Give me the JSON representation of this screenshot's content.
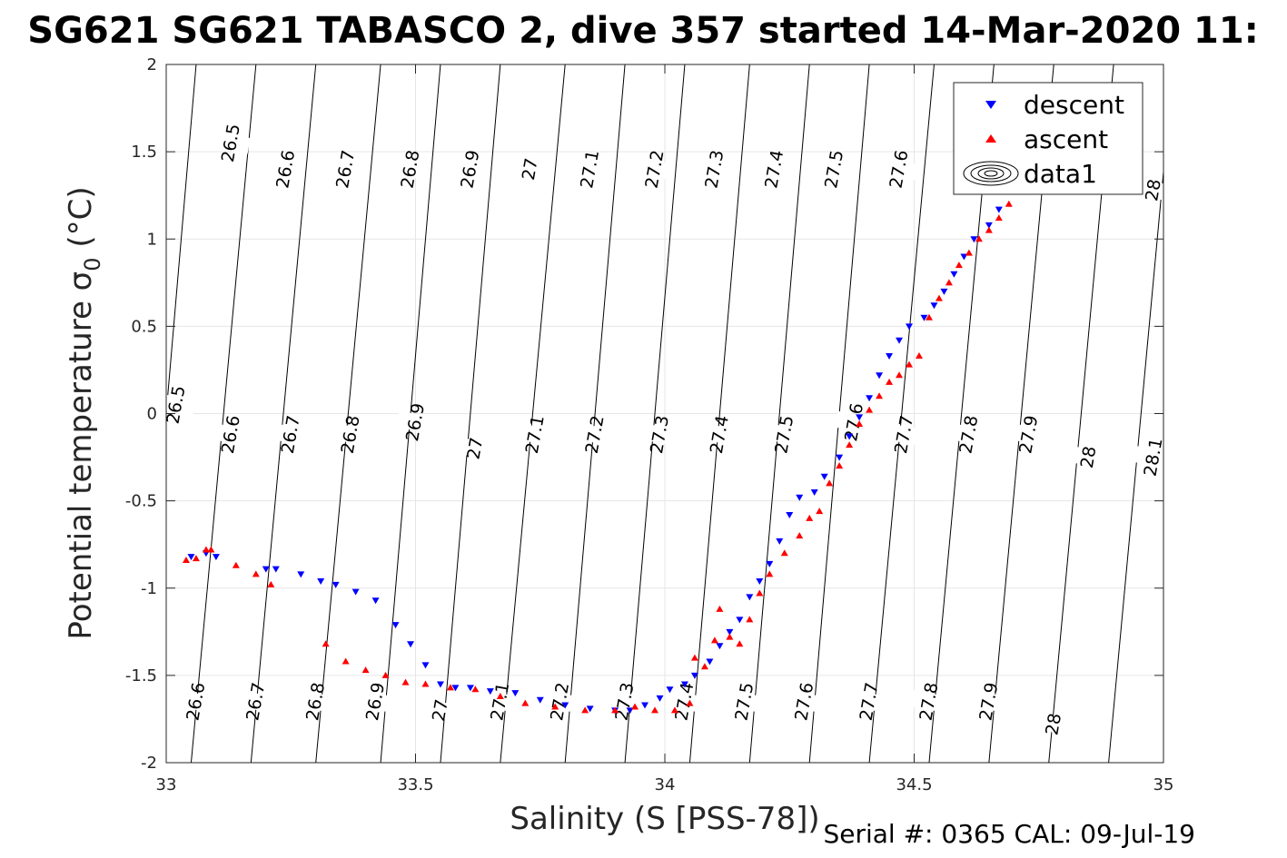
{
  "chart_data": {
    "type": "scatter",
    "title": "SG621 SG621 TABASCO 2, dive 357 started 14-Mar-2020 11:",
    "xlabel": "Salinity (S [PSS-78])",
    "ylabel": "Potential temperature σ",
    "ylabel_sub": "0",
    "ylabel_unit": " (°C)",
    "xlim": [
      33,
      35
    ],
    "ylim": [
      -2,
      2
    ],
    "xticks": [
      33,
      33.5,
      34,
      34.5,
      35
    ],
    "xtick_labels": [
      "33",
      "33.5",
      "34",
      "34.5",
      "35"
    ],
    "yticks": [
      -2,
      -1.5,
      -1,
      -0.5,
      0,
      0.5,
      1,
      1.5,
      2
    ],
    "ytick_labels": [
      "-2",
      "-1.5",
      "-1",
      "-0.5",
      "0",
      "0.5",
      "1",
      "1.5",
      "2"
    ],
    "grid": true,
    "legend_position": "top-right",
    "series": [
      {
        "name": "descent",
        "marker": "triangle-down",
        "color": "#0000ff",
        "points": [
          [
            33.05,
            -0.82
          ],
          [
            33.08,
            -0.8
          ],
          [
            33.1,
            -0.82
          ],
          [
            33.2,
            -0.89
          ],
          [
            33.22,
            -0.89
          ],
          [
            33.27,
            -0.92
          ],
          [
            33.31,
            -0.96
          ],
          [
            33.34,
            -0.98
          ],
          [
            33.38,
            -1.02
          ],
          [
            33.42,
            -1.07
          ],
          [
            33.46,
            -1.21
          ],
          [
            33.49,
            -1.32
          ],
          [
            33.52,
            -1.44
          ],
          [
            33.55,
            -1.55
          ],
          [
            33.58,
            -1.57
          ],
          [
            33.61,
            -1.57
          ],
          [
            33.65,
            -1.59
          ],
          [
            33.7,
            -1.6
          ],
          [
            33.75,
            -1.64
          ],
          [
            33.8,
            -1.67
          ],
          [
            33.85,
            -1.69
          ],
          [
            33.9,
            -1.7
          ],
          [
            33.93,
            -1.7
          ],
          [
            33.96,
            -1.67
          ],
          [
            33.99,
            -1.63
          ],
          [
            34.01,
            -1.58
          ],
          [
            34.04,
            -1.55
          ],
          [
            34.06,
            -1.5
          ],
          [
            34.09,
            -1.42
          ],
          [
            34.11,
            -1.33
          ],
          [
            34.13,
            -1.25
          ],
          [
            34.15,
            -1.18
          ],
          [
            34.17,
            -1.05
          ],
          [
            34.19,
            -0.96
          ],
          [
            34.21,
            -0.86
          ],
          [
            34.23,
            -0.73
          ],
          [
            34.25,
            -0.58
          ],
          [
            34.27,
            -0.48
          ],
          [
            34.3,
            -0.45
          ],
          [
            34.32,
            -0.36
          ],
          [
            34.35,
            -0.25
          ],
          [
            34.37,
            -0.13
          ],
          [
            34.39,
            -0.02
          ],
          [
            34.41,
            0.09
          ],
          [
            34.43,
            0.22
          ],
          [
            34.45,
            0.33
          ],
          [
            34.47,
            0.42
          ],
          [
            34.49,
            0.5
          ],
          [
            34.52,
            0.55
          ],
          [
            34.54,
            0.62
          ],
          [
            34.56,
            0.7
          ],
          [
            34.58,
            0.8
          ],
          [
            34.6,
            0.9
          ],
          [
            34.62,
            1.0
          ],
          [
            34.65,
            1.08
          ],
          [
            34.67,
            1.17
          ],
          [
            34.69,
            1.28
          ],
          [
            34.72,
            1.32
          ]
        ]
      },
      {
        "name": "ascent",
        "marker": "triangle-up",
        "color": "#ff0000",
        "points": [
          [
            33.04,
            -0.84
          ],
          [
            33.06,
            -0.83
          ],
          [
            33.08,
            -0.78
          ],
          [
            33.09,
            -0.78
          ],
          [
            33.14,
            -0.87
          ],
          [
            33.18,
            -0.92
          ],
          [
            33.21,
            -0.98
          ],
          [
            33.32,
            -1.32
          ],
          [
            33.36,
            -1.42
          ],
          [
            33.4,
            -1.47
          ],
          [
            33.44,
            -1.5
          ],
          [
            33.48,
            -1.54
          ],
          [
            33.52,
            -1.55
          ],
          [
            33.57,
            -1.57
          ],
          [
            33.62,
            -1.58
          ],
          [
            33.67,
            -1.62
          ],
          [
            33.72,
            -1.66
          ],
          [
            33.78,
            -1.68
          ],
          [
            33.84,
            -1.7
          ],
          [
            33.9,
            -1.7
          ],
          [
            33.94,
            -1.68
          ],
          [
            33.98,
            -1.7
          ],
          [
            34.02,
            -1.7
          ],
          [
            34.05,
            -1.66
          ],
          [
            34.06,
            -1.4
          ],
          [
            34.08,
            -1.45
          ],
          [
            34.1,
            -1.3
          ],
          [
            34.11,
            -1.12
          ],
          [
            34.13,
            -1.28
          ],
          [
            34.15,
            -1.32
          ],
          [
            34.17,
            -1.18
          ],
          [
            34.19,
            -1.03
          ],
          [
            34.21,
            -0.92
          ],
          [
            34.24,
            -0.8
          ],
          [
            34.27,
            -0.7
          ],
          [
            34.29,
            -0.6
          ],
          [
            34.31,
            -0.56
          ],
          [
            34.33,
            -0.4
          ],
          [
            34.35,
            -0.3
          ],
          [
            34.37,
            -0.18
          ],
          [
            34.39,
            -0.06
          ],
          [
            34.41,
            0.02
          ],
          [
            34.43,
            0.1
          ],
          [
            34.45,
            0.18
          ],
          [
            34.47,
            0.22
          ],
          [
            34.49,
            0.28
          ],
          [
            34.51,
            0.33
          ],
          [
            34.53,
            0.55
          ],
          [
            34.55,
            0.66
          ],
          [
            34.57,
            0.75
          ],
          [
            34.59,
            0.85
          ],
          [
            34.61,
            0.92
          ],
          [
            34.63,
            1.0
          ],
          [
            34.65,
            1.05
          ],
          [
            34.67,
            1.12
          ],
          [
            34.69,
            1.2
          ],
          [
            34.71,
            1.28
          ],
          [
            34.73,
            1.3
          ]
        ]
      }
    ],
    "contour_legend_label": "data1",
    "isopycnals": {
      "levels": [
        26.5,
        26.6,
        26.7,
        26.8,
        26.9,
        27,
        27.1,
        27.2,
        27.3,
        27.4,
        27.5,
        27.6,
        27.7,
        27.8,
        27.9,
        28,
        28.1
      ],
      "bottom_salinity": [
        32.94,
        33.05,
        33.17,
        33.3,
        33.43,
        33.55,
        33.67,
        33.8,
        33.92,
        34.05,
        34.17,
        34.29,
        34.41,
        34.53,
        34.65,
        34.77,
        34.89
      ],
      "top_salinity": [
        33.06,
        33.18,
        33.3,
        33.43,
        33.55,
        33.67,
        33.8,
        33.92,
        34.04,
        34.17,
        34.29,
        34.41,
        34.54,
        34.66,
        34.78,
        34.9,
        35.02
      ]
    },
    "contour_labels": [
      {
        "text": "26.5",
        "s": 33.13,
        "t": 1.55
      },
      {
        "text": "26.6",
        "s": 33.24,
        "t": 1.4
      },
      {
        "text": "26.7",
        "s": 33.36,
        "t": 1.4
      },
      {
        "text": "26.8",
        "s": 33.49,
        "t": 1.4
      },
      {
        "text": "26.9",
        "s": 33.61,
        "t": 1.4
      },
      {
        "text": "27",
        "s": 33.73,
        "t": 1.4
      },
      {
        "text": "27.1",
        "s": 33.85,
        "t": 1.4
      },
      {
        "text": "27.2",
        "s": 33.98,
        "t": 1.4
      },
      {
        "text": "27.3",
        "s": 34.1,
        "t": 1.4
      },
      {
        "text": "27.4",
        "s": 34.22,
        "t": 1.4
      },
      {
        "text": "27.5",
        "s": 34.34,
        "t": 1.4
      },
      {
        "text": "27.6",
        "s": 34.47,
        "t": 1.4
      },
      {
        "text": "28",
        "s": 34.98,
        "t": 1.28
      },
      {
        "text": "26.5",
        "s": 33.02,
        "t": 0.05
      },
      {
        "text": "26.6",
        "s": 33.13,
        "t": -0.12
      },
      {
        "text": "26.7",
        "s": 33.25,
        "t": -0.12
      },
      {
        "text": "26.8",
        "s": 33.37,
        "t": -0.12
      },
      {
        "text": "26.9",
        "s": 33.5,
        "t": -0.05
      },
      {
        "text": "27",
        "s": 33.62,
        "t": -0.2
      },
      {
        "text": "27.1",
        "s": 33.74,
        "t": -0.12
      },
      {
        "text": "27.2",
        "s": 33.86,
        "t": -0.12
      },
      {
        "text": "27.3",
        "s": 33.99,
        "t": -0.12
      },
      {
        "text": "27.4",
        "s": 34.11,
        "t": -0.12
      },
      {
        "text": "27.5",
        "s": 34.24,
        "t": -0.12
      },
      {
        "text": "27.6",
        "s": 34.38,
        "t": -0.05
      },
      {
        "text": "27.7",
        "s": 34.48,
        "t": -0.12
      },
      {
        "text": "27.8",
        "s": 34.61,
        "t": -0.12
      },
      {
        "text": "27.9",
        "s": 34.73,
        "t": -0.12
      },
      {
        "text": "28",
        "s": 34.85,
        "t": -0.25
      },
      {
        "text": "28.1",
        "s": 34.98,
        "t": -0.25
      },
      {
        "text": "26.6",
        "s": 33.06,
        "t": -1.65
      },
      {
        "text": "26.7",
        "s": 33.18,
        "t": -1.65
      },
      {
        "text": "26.8",
        "s": 33.3,
        "t": -1.65
      },
      {
        "text": "26.9",
        "s": 33.42,
        "t": -1.65
      },
      {
        "text": "27",
        "s": 33.55,
        "t": -1.7
      },
      {
        "text": "27.1",
        "s": 33.67,
        "t": -1.65
      },
      {
        "text": "27.2",
        "s": 33.79,
        "t": -1.65
      },
      {
        "text": "27.3",
        "s": 33.92,
        "t": -1.65
      },
      {
        "text": "27.4",
        "s": 34.04,
        "t": -1.65
      },
      {
        "text": "27.5",
        "s": 34.16,
        "t": -1.65
      },
      {
        "text": "27.6",
        "s": 34.28,
        "t": -1.65
      },
      {
        "text": "27.7",
        "s": 34.41,
        "t": -1.65
      },
      {
        "text": "27.8",
        "s": 34.53,
        "t": -1.65
      },
      {
        "text": "27.9",
        "s": 34.65,
        "t": -1.65
      },
      {
        "text": "28",
        "s": 34.78,
        "t": -1.78
      }
    ],
    "serial_text": "Serial #: 0365  CAL: 09-Jul-19"
  }
}
